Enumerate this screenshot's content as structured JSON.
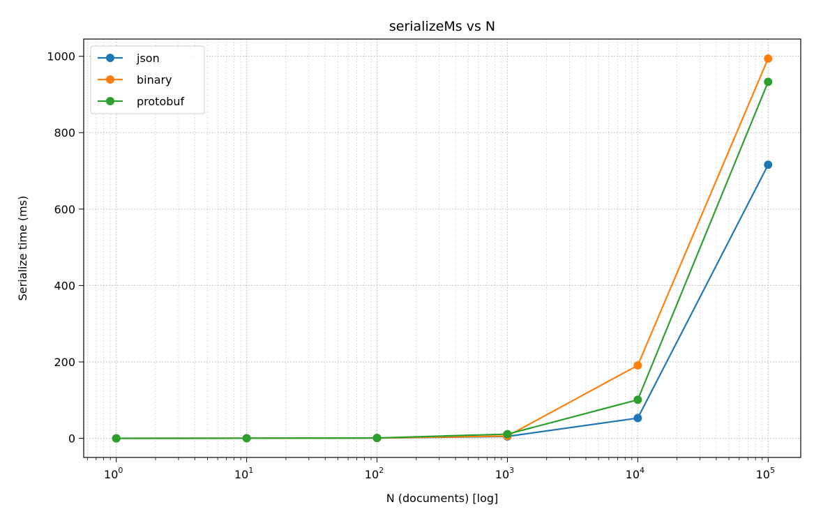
{
  "chart_data": {
    "type": "line",
    "title": "serializeMs vs N",
    "xlabel": "N (documents) [log]",
    "ylabel": "Serialize time (ms)",
    "x_scale": "log",
    "x": [
      1,
      10,
      100,
      1000,
      10000,
      100000
    ],
    "x_ticks": [
      {
        "base": "10",
        "exp": "0"
      },
      {
        "base": "10",
        "exp": "1"
      },
      {
        "base": "10",
        "exp": "2"
      },
      {
        "base": "10",
        "exp": "3"
      },
      {
        "base": "10",
        "exp": "4"
      },
      {
        "base": "10",
        "exp": "5"
      }
    ],
    "y_ticks": [
      "0",
      "200",
      "400",
      "600",
      "800",
      "1000"
    ],
    "ylim": [
      -50,
      1045
    ],
    "grid": true,
    "legend_position": "top-left",
    "series": [
      {
        "name": "json",
        "color": "#1f77b4",
        "values": [
          0.05,
          0.3,
          0.8,
          5,
          53,
          716
        ]
      },
      {
        "name": "binary",
        "color": "#ff7f0e",
        "values": [
          0.05,
          0.3,
          0.8,
          6,
          191,
          994
        ]
      },
      {
        "name": "protobuf",
        "color": "#2ca02c",
        "values": [
          0.05,
          0.3,
          1.0,
          11,
          101,
          933
        ]
      }
    ]
  }
}
